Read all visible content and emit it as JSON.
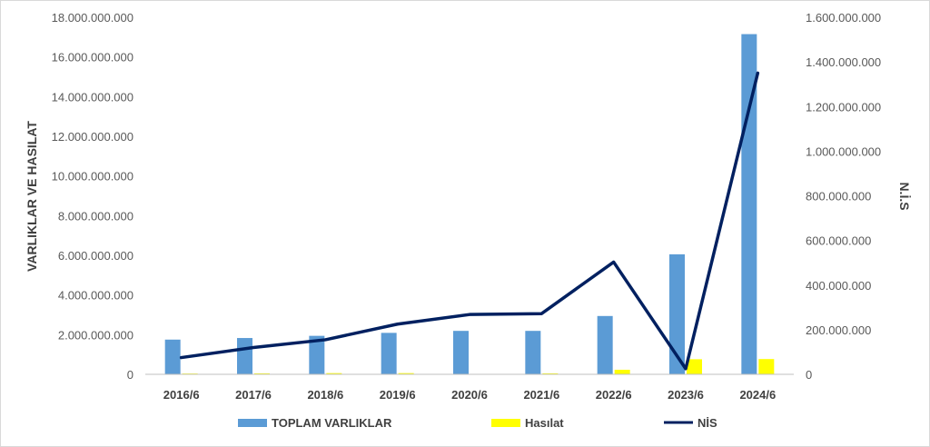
{
  "chart_data": {
    "type": "bar",
    "categories": [
      "2016/6",
      "2017/6",
      "2018/6",
      "2019/6",
      "2020/6",
      "2021/6",
      "2022/6",
      "2023/6",
      "2024/6"
    ],
    "series": [
      {
        "name": "TOPLAM VARLIKLAR",
        "type": "bar",
        "axis": "left",
        "color": "#5B9BD5",
        "values": [
          1750000000,
          1830000000,
          1940000000,
          2090000000,
          2190000000,
          2190000000,
          2940000000,
          6050000000,
          17150000000
        ]
      },
      {
        "name": "Hasılat",
        "type": "bar",
        "axis": "left",
        "color": "#FFFF00",
        "values": [
          40000000,
          50000000,
          60000000,
          60000000,
          20000000,
          50000000,
          230000000,
          760000000,
          770000000
        ]
      },
      {
        "name": "NİS",
        "type": "line",
        "axis": "right",
        "color": "#002060",
        "values": [
          75000000,
          120000000,
          155000000,
          225000000,
          268000000,
          272000000,
          503000000,
          25000000,
          1350000000
        ]
      }
    ],
    "ylabel": "VARLIKLAR VE HASILAT",
    "ylabel_right": "N.İ.S",
    "ylim": [
      0,
      18000000000
    ],
    "ylim_right": [
      0,
      1600000000
    ],
    "yticks": [
      "0",
      "2.000.000.000",
      "4.000.000.000",
      "6.000.000.000",
      "8.000.000.000",
      "10.000.000.000",
      "12.000.000.000",
      "14.000.000.000",
      "16.000.000.000",
      "18.000.000.000"
    ],
    "yticks_right": [
      "0",
      "200.000.000",
      "400.000.000",
      "600.000.000",
      "800.000.000",
      "1.000.000.000",
      "1.200.000.000",
      "1.400.000.000",
      "1.600.000.000"
    ],
    "grid": false,
    "legend_position": "bottom"
  }
}
